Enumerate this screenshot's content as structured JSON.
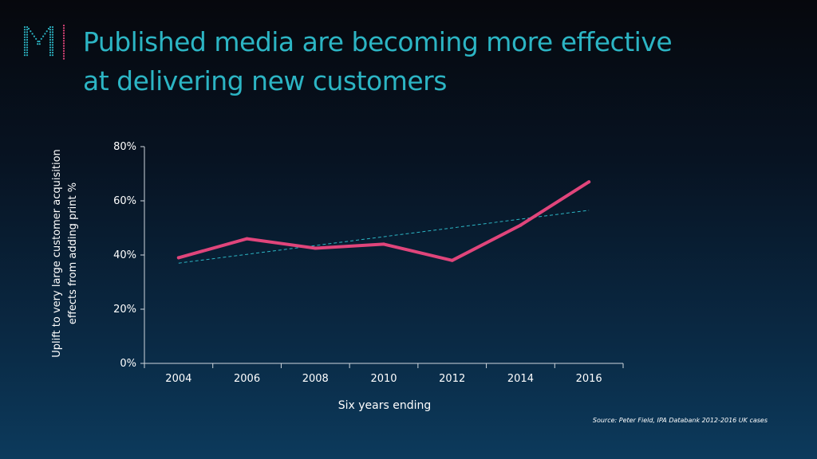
{
  "title": {
    "line1": "Published media are becoming more effective",
    "line2": "at delivering new customers"
  },
  "logo_letter": "M",
  "colors": {
    "title": "#2cb5c4",
    "series": "#e0457b",
    "trendline": "#2cb5c4",
    "logo_left": "#2cb5c4",
    "logo_right": "#e0457b",
    "axis": "#ffffff"
  },
  "chart_data": {
    "type": "line",
    "title": "",
    "xlabel": "Six years ending",
    "ylabel_lines": [
      "Uplift to very large customer acquisition",
      "effects from adding print %"
    ],
    "categories": [
      "2004",
      "2006",
      "2008",
      "2010",
      "2012",
      "2014",
      "2016"
    ],
    "series": [
      {
        "name": "Uplift",
        "values": [
          39,
          46,
          42.5,
          44,
          38,
          51,
          67
        ]
      }
    ],
    "trendline": {
      "name": "Linear trend",
      "style": "dashed",
      "start": 37,
      "end": 56.5
    },
    "ylim": [
      0,
      80
    ],
    "yticks": [
      0,
      20,
      40,
      60,
      80
    ],
    "ytick_labels": [
      "0%",
      "20%",
      "40%",
      "60%",
      "80%"
    ],
    "grid": false,
    "legend": "none"
  },
  "source": "Source: Peter Field, IPA Databank 2012-2016 UK cases"
}
